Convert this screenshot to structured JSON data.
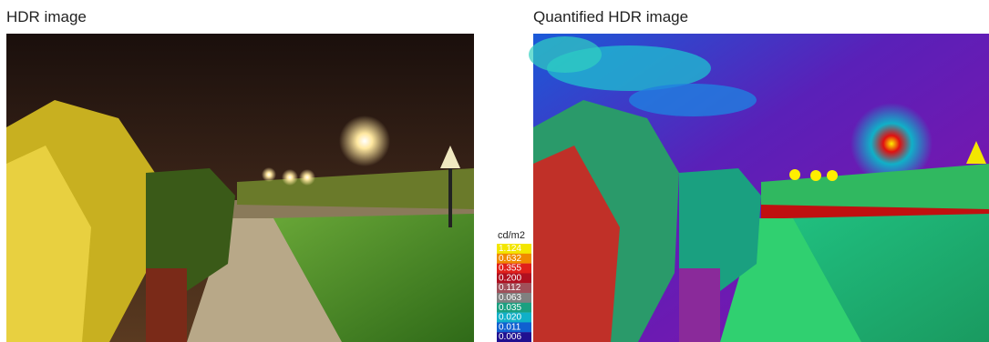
{
  "panels": [
    {
      "title": "HDR image"
    },
    {
      "title": "Quantified HDR image"
    }
  ],
  "legend": {
    "unit": "cd/m2",
    "entries": [
      {
        "label": "1.124",
        "color": "#f3e600"
      },
      {
        "label": "0.632",
        "color": "#f08a00"
      },
      {
        "label": "0.355",
        "color": "#e0201a"
      },
      {
        "label": "0.200",
        "color": "#b01020"
      },
      {
        "label": "0.112",
        "color": "#a0505a"
      },
      {
        "label": "0.063",
        "color": "#808080"
      },
      {
        "label": "0.035",
        "color": "#1aa080"
      },
      {
        "label": "0.020",
        "color": "#10b0c8"
      },
      {
        "label": "0.011",
        "color": "#1060d0"
      },
      {
        "label": "0.006",
        "color": "#201090"
      }
    ]
  }
}
